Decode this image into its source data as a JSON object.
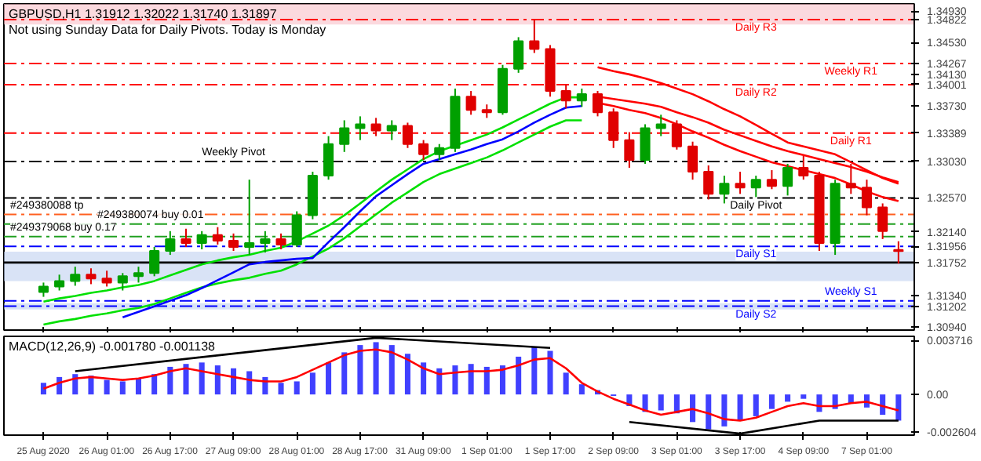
{
  "chart_data": [
    {
      "type": "candlestick",
      "title": "GBPUSD,H1 1.31912 1.32022 1.31740 1.31897",
      "subtitle": "Not using Sunday Data for Daily Pivots.  Today is Monday",
      "ohlc": [
        [
          1.3138,
          1.315,
          1.3132,
          1.3145
        ],
        [
          1.3145,
          1.316,
          1.314,
          1.3152
        ],
        [
          1.3152,
          1.317,
          1.3146,
          1.316
        ],
        [
          1.316,
          1.3168,
          1.3148,
          1.3155
        ],
        [
          1.3155,
          1.3165,
          1.3145,
          1.315
        ],
        [
          1.315,
          1.3162,
          1.314,
          1.3158
        ],
        [
          1.3158,
          1.317,
          1.315,
          1.3162
        ],
        [
          1.3162,
          1.3195,
          1.3158,
          1.319
        ],
        [
          1.319,
          1.3215,
          1.3185,
          1.3205
        ],
        [
          1.3205,
          1.3218,
          1.3195,
          1.32
        ],
        [
          1.32,
          1.3215,
          1.3192,
          1.321
        ],
        [
          1.321,
          1.322,
          1.3198,
          1.3203
        ],
        [
          1.3203,
          1.3212,
          1.319,
          1.3195
        ],
        [
          1.3195,
          1.328,
          1.3185,
          1.32
        ],
        [
          1.32,
          1.3215,
          1.3188,
          1.3205
        ],
        [
          1.3205,
          1.3212,
          1.3192,
          1.3198
        ],
        [
          1.3198,
          1.324,
          1.3195,
          1.3235
        ],
        [
          1.3235,
          1.329,
          1.323,
          1.3285
        ],
        [
          1.3285,
          1.3335,
          1.328,
          1.3325
        ],
        [
          1.3325,
          1.3355,
          1.3315,
          1.3345
        ],
        [
          1.3345,
          1.336,
          1.333,
          1.335
        ],
        [
          1.335,
          1.3358,
          1.3335,
          1.3342
        ],
        [
          1.3342,
          1.3355,
          1.333,
          1.3348
        ],
        [
          1.3348,
          1.3352,
          1.332,
          1.3325
        ],
        [
          1.3325,
          1.333,
          1.3305,
          1.3312
        ],
        [
          1.3312,
          1.3325,
          1.3305,
          1.332
        ],
        [
          1.332,
          1.3395,
          1.3315,
          1.3385
        ],
        [
          1.3385,
          1.3392,
          1.3362,
          1.3368
        ],
        [
          1.3368,
          1.3375,
          1.3358,
          1.3365
        ],
        [
          1.3365,
          1.3425,
          1.3362,
          1.342
        ],
        [
          1.342,
          1.346,
          1.3415,
          1.3455
        ],
        [
          1.3455,
          1.3482,
          1.344,
          1.3445
        ],
        [
          1.3445,
          1.345,
          1.3385,
          1.3392
        ],
        [
          1.3392,
          1.34,
          1.337,
          1.338
        ],
        [
          1.338,
          1.3395,
          1.3372,
          1.3388
        ],
        [
          1.3388,
          1.3392,
          1.336,
          1.3365
        ],
        [
          1.3365,
          1.337,
          1.332,
          1.333
        ],
        [
          1.333,
          1.334,
          1.3295,
          1.3305
        ],
        [
          1.3305,
          1.335,
          1.33,
          1.3345
        ],
        [
          1.3345,
          1.3362,
          1.3335,
          1.335
        ],
        [
          1.335,
          1.3355,
          1.3318,
          1.3322
        ],
        [
          1.3322,
          1.3328,
          1.328,
          1.329
        ],
        [
          1.329,
          1.3298,
          1.3255,
          1.3262
        ],
        [
          1.3262,
          1.3285,
          1.325,
          1.3275
        ],
        [
          1.3275,
          1.329,
          1.3262,
          1.327
        ],
        [
          1.327,
          1.3285,
          1.3258,
          1.328
        ],
        [
          1.328,
          1.3292,
          1.3268,
          1.3272
        ],
        [
          1.3272,
          1.33,
          1.326,
          1.3295
        ],
        [
          1.3295,
          1.331,
          1.328,
          1.3285
        ],
        [
          1.3285,
          1.329,
          1.319,
          1.32
        ],
        [
          1.32,
          1.328,
          1.3185,
          1.3275
        ],
        [
          1.3275,
          1.33,
          1.3262,
          1.327
        ],
        [
          1.327,
          1.328,
          1.3235,
          1.3245
        ],
        [
          1.3245,
          1.325,
          1.3205,
          1.3215
        ],
        [
          1.31912,
          1.32022,
          1.3174,
          1.31897
        ]
      ],
      "series": [
        {
          "type": "line",
          "color": "#00e000",
          "values": [
            1.3126,
            1.313,
            1.3133,
            1.3137,
            1.314,
            1.3144,
            1.3147,
            1.3152,
            1.3159,
            1.3166,
            1.3173,
            1.3178,
            1.3182,
            1.3185,
            1.319,
            1.3194,
            1.3202,
            1.3212,
            1.3222,
            1.3235,
            1.325,
            1.3265,
            1.328,
            1.3293,
            1.3306,
            1.3316,
            1.3323,
            1.333,
            1.3337,
            1.3346,
            1.3356,
            1.3366,
            1.3376,
            1.3384,
            1.3384,
            null,
            null,
            null,
            null,
            null,
            null,
            null,
            null,
            null,
            null,
            null,
            null,
            null,
            null,
            null,
            null,
            null,
            null,
            null,
            null
          ]
        },
        {
          "type": "line",
          "color": "#00e000",
          "values": [
            1.3097,
            1.3101,
            1.3104,
            1.3108,
            1.3111,
            1.3115,
            1.3118,
            1.3123,
            1.313,
            1.3137,
            1.3144,
            1.3149,
            1.3153,
            1.3156,
            1.3161,
            1.3165,
            1.3173,
            1.3183,
            1.3193,
            1.3206,
            1.3221,
            1.3236,
            1.3251,
            1.3264,
            1.3277,
            1.3287,
            1.3294,
            1.3301,
            1.3308,
            1.3317,
            1.3327,
            1.3337,
            1.3347,
            1.3355,
            1.3355,
            null,
            null,
            null,
            null,
            null,
            null,
            null,
            null,
            null,
            null,
            null,
            null,
            null,
            null,
            null,
            null,
            null,
            null,
            null,
            null
          ]
        },
        {
          "type": "line",
          "color": "#0000ff",
          "values": [
            null,
            null,
            null,
            null,
            null,
            1.3106,
            1.3113,
            1.312,
            1.3127,
            1.3134,
            1.3143,
            1.3153,
            1.3163,
            1.3173,
            1.3176,
            1.3178,
            1.318,
            1.3181,
            1.3201,
            1.322,
            1.324,
            1.3259,
            1.3273,
            1.3287,
            1.33,
            1.3306,
            1.3312,
            1.3318,
            1.3325,
            1.3331,
            1.3341,
            1.3352,
            1.3362,
            1.3371,
            1.3373,
            null,
            null,
            null,
            null,
            null,
            null,
            null,
            null,
            null,
            null,
            null,
            null,
            null,
            null,
            null,
            null,
            null,
            null,
            null,
            null
          ]
        },
        {
          "type": "line",
          "color": "#ff0000",
          "values": [
            null,
            null,
            null,
            null,
            null,
            null,
            null,
            null,
            null,
            null,
            null,
            null,
            null,
            null,
            null,
            null,
            null,
            null,
            null,
            null,
            null,
            null,
            null,
            null,
            null,
            null,
            null,
            null,
            null,
            null,
            null,
            null,
            null,
            null,
            null,
            1.3422,
            1.3417,
            1.3413,
            1.3408,
            1.3402,
            1.3395,
            1.3388,
            1.3379,
            1.3369,
            1.336,
            1.3349,
            1.3338,
            1.3327,
            1.3322,
            1.3317,
            1.3312,
            1.3302,
            1.3292,
            1.3282,
            1.3275
          ]
        },
        {
          "type": "line",
          "color": "#ff0000",
          "values": [
            null,
            null,
            null,
            null,
            null,
            null,
            null,
            null,
            null,
            null,
            null,
            null,
            null,
            null,
            null,
            null,
            null,
            null,
            null,
            null,
            null,
            null,
            null,
            null,
            null,
            null,
            null,
            null,
            null,
            null,
            null,
            null,
            null,
            null,
            null,
            1.3385,
            1.3382,
            1.3379,
            1.3376,
            1.3372,
            1.3365,
            1.3359,
            1.3352,
            1.3343,
            1.3336,
            1.3329,
            1.3322,
            1.3316,
            1.3311,
            1.3306,
            1.3301,
            1.3296,
            1.329,
            1.3283,
            1.3277
          ]
        },
        {
          "type": "line",
          "color": "#ff0000",
          "values": [
            null,
            null,
            null,
            null,
            null,
            null,
            null,
            null,
            null,
            null,
            null,
            null,
            null,
            null,
            null,
            null,
            null,
            null,
            null,
            null,
            null,
            null,
            null,
            null,
            null,
            null,
            null,
            null,
            null,
            null,
            null,
            null,
            null,
            null,
            null,
            1.3377,
            1.3373,
            1.3368,
            1.3364,
            1.3358,
            1.335,
            1.3341,
            1.3333,
            1.3324,
            1.3316,
            1.3309,
            1.3302,
            1.3297,
            1.3292,
            1.3287,
            1.3282,
            1.3274,
            1.3265,
            1.3258,
            1.3253
          ]
        }
      ],
      "ylim": [
        1.309,
        1.3502
      ],
      "yticks": [
        {
          "value": 1.3493,
          "label": "1.34930"
        },
        {
          "value": 1.34822,
          "label": "1.34822"
        },
        {
          "value": 1.3453,
          "label": "1.34530"
        },
        {
          "value": 1.3413,
          "label": "1.34130"
        },
        {
          "value": 1.34267,
          "label": "1.34267"
        },
        {
          "value": 1.34001,
          "label": "1.34001"
        },
        {
          "value": 1.3373,
          "label": "1.33730"
        },
        {
          "value": 1.33389,
          "label": "1.33389"
        },
        {
          "value": 1.3303,
          "label": "1.33030"
        },
        {
          "value": 1.3257,
          "label": "1.32570"
        },
        {
          "value": 1.3214,
          "label": "1.32140"
        },
        {
          "value": 1.31956,
          "label": "1.31956"
        },
        {
          "value": 1.31752,
          "label": "1.31752"
        },
        {
          "value": 1.3134,
          "label": "1.31340"
        },
        {
          "value": 1.31202,
          "label": "1.31202"
        },
        {
          "value": 1.3094,
          "label": "1.30940"
        }
      ],
      "tick_labels": "y",
      "ref_lines": [
        {
          "axis": "y",
          "value": 1.34822,
          "label": "Daily R3",
          "color": "#ff0000",
          "line_style": "dashed"
        },
        {
          "axis": "y",
          "value": 1.34267,
          "label": "Weekly R1",
          "color": "#ff0000",
          "line_style": "dashed"
        },
        {
          "axis": "y",
          "value": 1.34001,
          "label": "Daily R2",
          "color": "#ff0000",
          "line_style": "dashed"
        },
        {
          "axis": "y",
          "value": 1.33389,
          "label": "Daily R1",
          "color": "#ff0000",
          "line_style": "dashed"
        },
        {
          "axis": "y",
          "value": 1.3303,
          "label": "Weekly Pivot",
          "color": "#000000",
          "line_style": "dashed"
        },
        {
          "axis": "y",
          "value": 1.3257,
          "label": "Daily Pivot",
          "color": "#000000",
          "line_style": "dashed"
        },
        {
          "axis": "y",
          "value": 1.31956,
          "label": "Daily S1",
          "color": "#0000ff",
          "line_style": "dashed"
        },
        {
          "axis": "y",
          "value": 1.3127,
          "label": "Weekly S1",
          "color": "#0000ff",
          "line_style": "dashed"
        },
        {
          "axis": "y",
          "value": 1.31202,
          "label": "Daily S2",
          "color": "#0000ff",
          "line_style": "dashed"
        },
        {
          "axis": "y",
          "value": 1.3236,
          "color": "#ff6020",
          "line_style": "dashed"
        },
        {
          "axis": "y",
          "value": 1.3224,
          "color": "#20a020",
          "line_style": "dashed"
        },
        {
          "axis": "y",
          "value": 1.3208,
          "color": "#20a020",
          "line_style": "dashed"
        },
        {
          "axis": "y",
          "value": 1.31752,
          "color": "#000000",
          "line_style": "solid"
        }
      ],
      "bands": [
        {
          "axis": "y",
          "from": 1.3476,
          "to": 1.3502,
          "color": "#f8c0c8"
        },
        {
          "axis": "y",
          "from": 1.3152,
          "to": 1.3189,
          "color": "#c0d0f0"
        },
        {
          "axis": "y",
          "from": 1.3116,
          "to": 1.3124,
          "color": "#c0d0f0"
        }
      ],
      "annotations": [
        {
          "text": "#249380088 tp",
          "y": 1.3236
        },
        {
          "text": "#249380074 buy 0.01",
          "y": 1.3224
        },
        {
          "text": "#249379068 buy 0.17",
          "y": 1.3208
        }
      ]
    },
    {
      "type": "bar",
      "title": "MACD(12,26,9) -0.001780 -0.001138",
      "categories": [
        "25 Aug 2020",
        null,
        null,
        null,
        "26 Aug 01:00",
        null,
        null,
        null,
        "26 Aug 17:00",
        null,
        null,
        null,
        "27 Aug 09:00",
        null,
        null,
        null,
        "28 Aug 01:00",
        null,
        null,
        null,
        "28 Aug 17:00",
        null,
        null,
        null,
        "31 Aug 09:00",
        null,
        null,
        null,
        "1 Sep 01:00",
        null,
        null,
        null,
        "1 Sep 17:00",
        null,
        null,
        null,
        "2 Sep 09:00",
        null,
        null,
        null,
        "3 Sep 01:00",
        null,
        null,
        null,
        "3 Sep 17:00",
        null,
        null,
        null,
        "4 Sep 09:00",
        null,
        null,
        null,
        "7 Sep 01:00",
        null,
        null
      ],
      "series": [
        {
          "type": "bar",
          "color": "#4040ff",
          "values": [
            0.0008,
            0.0012,
            0.0014,
            0.0013,
            0.001,
            0.0009,
            0.0011,
            0.0014,
            0.0019,
            0.0021,
            0.0022,
            0.002,
            0.0018,
            0.0016,
            0.0012,
            0.0008,
            0.0009,
            0.0015,
            0.0022,
            0.0029,
            0.0034,
            0.0036,
            0.0034,
            0.0028,
            0.0022,
            0.0018,
            0.002,
            0.0021,
            0.0019,
            0.002,
            0.0026,
            0.0033,
            0.003,
            0.0015,
            0.0007,
            0.0003,
            -0.0001,
            -0.0008,
            -0.0012,
            -0.0011,
            -0.0013,
            -0.0019,
            -0.0024,
            -0.0022,
            -0.0018,
            -0.0015,
            -0.001,
            -0.0005,
            -0.0003,
            -0.0012,
            -0.001,
            -0.0006,
            -0.0009,
            -0.0014,
            -0.0018
          ]
        },
        {
          "type": "line",
          "color": "#ff0000",
          "values": [
            0.0004,
            0.0008,
            0.0011,
            0.0012,
            0.0011,
            0.001,
            0.0011,
            0.0013,
            0.0016,
            0.0018,
            0.0016,
            0.0014,
            0.0012,
            0.001,
            0.0009,
            0.0009,
            0.0012,
            0.0017,
            0.0022,
            0.0027,
            0.003,
            0.0031,
            0.0029,
            0.0024,
            0.0018,
            0.0014,
            0.0015,
            0.0016,
            0.0016,
            0.0017,
            0.002,
            0.0024,
            0.0025,
            0.0018,
            0.0008,
            0.0002,
            -0.0003,
            -0.0007,
            -0.0011,
            -0.0014,
            -0.0012,
            -0.001,
            -0.0013,
            -0.0017,
            -0.0018,
            -0.0016,
            -0.0012,
            -0.0008,
            -0.0006,
            -0.0008,
            -0.0008,
            -0.0006,
            -0.0005,
            -0.0008,
            -0.0011
          ]
        },
        {
          "type": "line",
          "color": "#000000",
          "values": [
            null,
            null,
            0.0016,
            null,
            null,
            null,
            null,
            null,
            null,
            null,
            null,
            null,
            null,
            null,
            null,
            null,
            null,
            null,
            null,
            null,
            null,
            0.0039,
            null,
            null,
            null,
            null,
            null,
            null,
            null,
            null,
            null,
            null,
            0.0032,
            null,
            null,
            null,
            null,
            null,
            null,
            null,
            null,
            null,
            null,
            null,
            null,
            null,
            null,
            null,
            null,
            null,
            null,
            null,
            null,
            null,
            null
          ]
        },
        {
          "type": "line",
          "color": "#000000",
          "values": [
            null,
            null,
            null,
            null,
            null,
            null,
            null,
            null,
            null,
            null,
            null,
            null,
            null,
            null,
            null,
            null,
            null,
            null,
            null,
            null,
            null,
            null,
            null,
            null,
            null,
            null,
            null,
            null,
            null,
            null,
            null,
            null,
            null,
            null,
            null,
            null,
            null,
            -0.0019,
            null,
            null,
            null,
            null,
            null,
            null,
            -0.0027,
            null,
            null,
            null,
            null,
            -0.0018,
            null,
            null,
            null,
            null,
            -0.0018
          ]
        }
      ],
      "ylim": [
        -0.0028,
        0.004
      ],
      "yticks": [
        {
          "value": 0.003716,
          "label": "0.003716"
        },
        {
          "value": 0,
          "label": "0.00"
        },
        {
          "value": -0.002604,
          "label": "-0.002604"
        }
      ]
    }
  ]
}
